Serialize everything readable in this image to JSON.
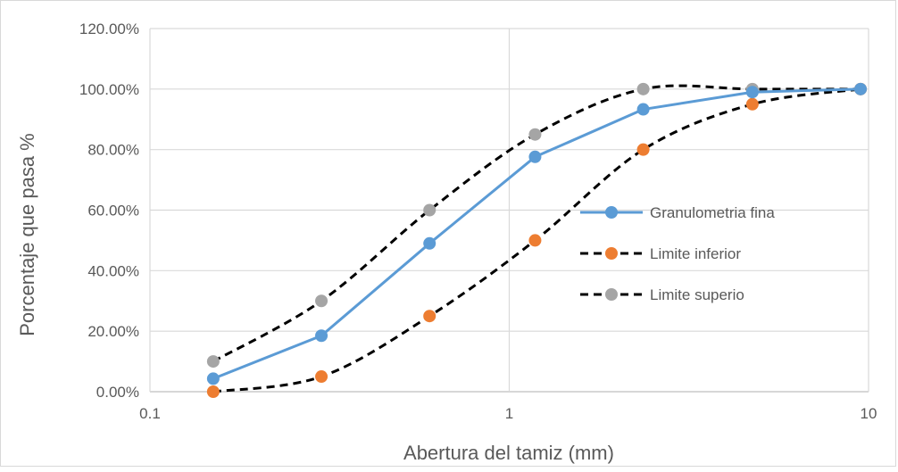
{
  "chart_data": {
    "type": "line",
    "title": "",
    "xlabel": "Abertura del tamiz (mm)",
    "ylabel": "Porcentaje que pasa %",
    "x_scale": "log",
    "xlim": [
      0.1,
      10
    ],
    "ylim": [
      0,
      1.2
    ],
    "x_ticks": [
      0.1,
      1,
      10
    ],
    "x_tick_labels": [
      "0.1",
      "1",
      "10"
    ],
    "y_ticks": [
      0,
      0.2,
      0.4,
      0.6,
      0.8,
      1.0,
      1.2
    ],
    "y_tick_labels": [
      "0.00%",
      "20.00%",
      "40.00%",
      "60.00%",
      "80.00%",
      "100.00%",
      "120.00%"
    ],
    "grid": true,
    "legend_position": "right",
    "series": [
      {
        "name": "Granulometria fina",
        "line_color": "#5b9bd5",
        "marker_color": "#5b9bd5",
        "line_style": "solid",
        "x": [
          0.15,
          0.3,
          0.6,
          1.18,
          2.36,
          4.75,
          9.5
        ],
        "y": [
          0.043,
          0.185,
          0.49,
          0.776,
          0.933,
          0.99,
          1.0
        ]
      },
      {
        "name": "Limite inferior",
        "line_color": "#000000",
        "marker_color": "#ed7d31",
        "line_style": "dashed",
        "x": [
          0.15,
          0.3,
          0.6,
          1.18,
          2.36,
          4.75,
          9.5
        ],
        "y": [
          0.0,
          0.05,
          0.25,
          0.5,
          0.8,
          0.95,
          1.0
        ]
      },
      {
        "name": "Limite superio",
        "line_color": "#000000",
        "marker_color": "#a5a5a5",
        "line_style": "dashed",
        "x": [
          0.15,
          0.3,
          0.6,
          1.18,
          2.36,
          4.75,
          9.5
        ],
        "y": [
          0.1,
          0.3,
          0.6,
          0.85,
          1.0,
          1.0,
          1.0
        ]
      }
    ]
  }
}
